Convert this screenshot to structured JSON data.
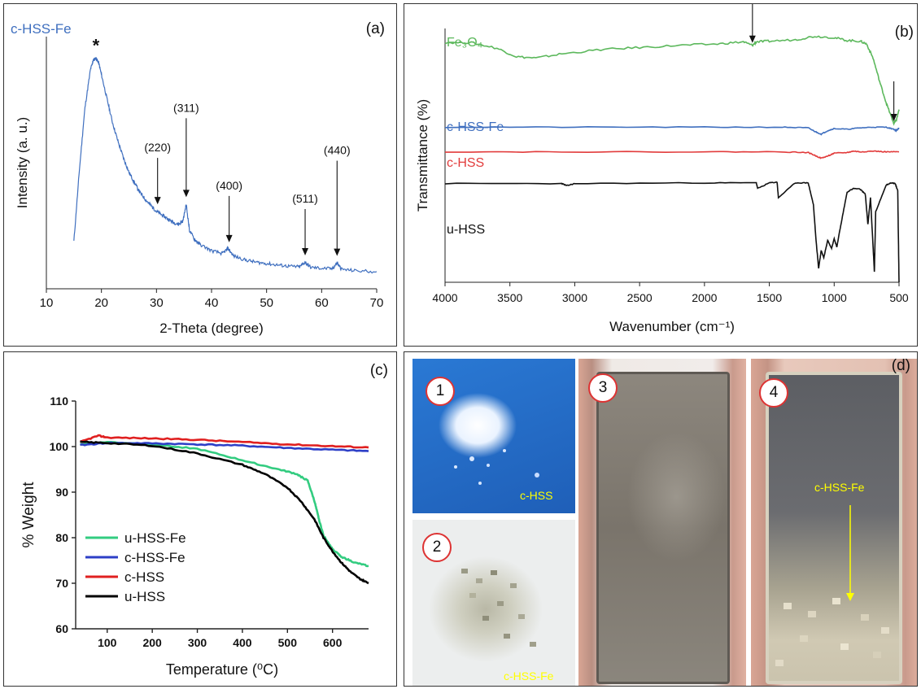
{
  "panels": [
    {
      "label": "(a)",
      "chart_data": {
        "type": "line",
        "title": "c-HSS-Fe",
        "xlabel": "2-Theta (degree)",
        "ylabel": "Intensity (a. u.)",
        "xlim": [
          10,
          70
        ],
        "xticks": [
          10,
          20,
          30,
          40,
          50,
          60,
          70
        ],
        "series": [
          {
            "name": "c-HSS-Fe",
            "color": "#3f6fbf",
            "x": [
              15,
              16,
              17,
              18,
              18.5,
              19,
              19.5,
              20,
              21,
              22,
              23,
              24,
              25,
              26,
              27,
              28,
              29,
              30,
              31,
              32,
              33,
              34,
              34.8,
              35.4,
              36,
              37,
              38,
              40,
              42,
              43,
              44,
              46,
              48,
              50,
              52,
              54,
              56,
              57,
              58,
              60,
              62,
              62.8,
              63.6,
              66,
              70
            ],
            "y": [
              2.0,
              5.0,
              7.6,
              9.2,
              9.6,
              9.7,
              9.5,
              9.0,
              8.0,
              7.0,
              6.2,
              5.5,
              4.9,
              4.45,
              4.05,
              3.75,
              3.5,
              3.25,
              3.1,
              2.95,
              2.8,
              2.7,
              2.85,
              3.55,
              2.45,
              2.05,
              1.85,
              1.6,
              1.48,
              1.7,
              1.38,
              1.22,
              1.12,
              1.06,
              1.0,
              0.95,
              0.92,
              1.12,
              0.9,
              0.86,
              0.84,
              1.1,
              0.82,
              0.76,
              0.72
            ]
          }
        ],
        "annotations": [
          {
            "text": "*",
            "x": 19,
            "y": 9.7,
            "arrow": false
          },
          {
            "text": "(220)",
            "x": 30.2,
            "y": 3.45,
            "arrow": true
          },
          {
            "text": "(311)",
            "x": 35.4,
            "y": 3.75,
            "arrow": true
          },
          {
            "text": "(400)",
            "x": 43.2,
            "y": 1.85,
            "arrow": true
          },
          {
            "text": "(511)",
            "x": 57.0,
            "y": 1.3,
            "arrow": true
          },
          {
            "text": "(440)",
            "x": 62.8,
            "y": 1.28,
            "arrow": true
          }
        ]
      }
    },
    {
      "label": "(b)",
      "chart_data": {
        "type": "line",
        "xlabel": "Wavenumber (cm⁻¹)",
        "ylabel": "Transmittance (%)",
        "xlim": [
          4000,
          500
        ],
        "xticks": [
          4000,
          3500,
          3000,
          2500,
          2000,
          1500,
          1000,
          500
        ],
        "series": [
          {
            "name": "Fe₃O₄",
            "color": "#5cb85c",
            "x": [
              4000,
              3800,
              3600,
              3450,
              3300,
              3100,
              2800,
              2500,
              2200,
              1900,
              1700,
              1630,
              1600,
              1500,
              1300,
              1150,
              1000,
              900,
              800,
              750,
              700,
              650,
              600,
              560,
              540,
              520,
              500
            ],
            "y": [
              3.4,
              3.4,
              3.32,
              3.2,
              3.18,
              3.24,
              3.3,
              3.33,
              3.36,
              3.38,
              3.41,
              3.36,
              3.41,
              3.42,
              3.44,
              3.49,
              3.47,
              3.43,
              3.42,
              3.38,
              3.18,
              2.85,
              2.55,
              2.35,
              2.25,
              2.3,
              2.45
            ]
          },
          {
            "name": "c-HSS-Fe",
            "color": "#3f6fbf",
            "x": [
              4000,
              3000,
              2000,
              1400,
              1200,
              1150,
              1100,
              1050,
              1000,
              900,
              800,
              700,
              600,
              540,
              520,
              500
            ],
            "y": [
              2.2,
              2.2,
              2.2,
              2.2,
              2.19,
              2.14,
              2.1,
              2.15,
              2.18,
              2.17,
              2.19,
              2.2,
              2.2,
              2.17,
              2.15,
              2.19
            ]
          },
          {
            "name": "c-HSS",
            "color": "#e23c3c",
            "x": [
              4000,
              3000,
              2000,
              1400,
              1200,
              1150,
              1100,
              1050,
              1000,
              900,
              850,
              800,
              700,
              600,
              500
            ],
            "y": [
              1.85,
              1.85,
              1.85,
              1.85,
              1.84,
              1.8,
              1.76,
              1.79,
              1.83,
              1.84,
              1.86,
              1.85,
              1.86,
              1.85,
              1.85
            ]
          },
          {
            "name": "u-HSS",
            "color": "#111111",
            "x": [
              4000,
              3100,
              3060,
              3000,
              2000,
              1600,
              1590,
              1500,
              1440,
              1430,
              1300,
              1200,
              1160,
              1140,
              1120,
              1100,
              1080,
              1050,
              1020,
              1000,
              980,
              950,
              900,
              850,
              800,
              760,
              740,
              720,
              700,
              690,
              680,
              600,
              560,
              530,
              510,
              500
            ],
            "y": [
              1.4,
              1.4,
              1.37,
              1.4,
              1.41,
              1.41,
              1.33,
              1.41,
              1.42,
              1.2,
              1.41,
              1.41,
              1.1,
              0.6,
              0.2,
              0.45,
              0.35,
              0.6,
              0.48,
              0.62,
              0.5,
              0.8,
              1.28,
              1.33,
              1.32,
              1.25,
              0.82,
              1.2,
              0.5,
              0.15,
              1.0,
              1.38,
              1.41,
              1.4,
              1.3,
              0.0
            ]
          }
        ],
        "annotations": [
          {
            "text": "",
            "x": 1630,
            "y": 3.36,
            "arrow": true
          },
          {
            "text": "",
            "x": 540,
            "y": 2.25,
            "arrow": true
          }
        ]
      }
    },
    {
      "label": "(c)",
      "chart_data": {
        "type": "line",
        "xlabel": "Temperature (⁰C)",
        "ylabel": "% Weight",
        "xlim": [
          30,
          680
        ],
        "ylim": [
          60,
          110
        ],
        "xticks": [
          100,
          200,
          300,
          400,
          500,
          600
        ],
        "yticks": [
          60,
          70,
          80,
          90,
          100,
          110
        ],
        "legend": "lower-left",
        "series": [
          {
            "name": "u-HSS-Fe",
            "color": "#33cc80",
            "x": [
              40,
              100,
              200,
              300,
              400,
              480,
              520,
              545,
              560,
              570,
              580,
              600,
              620,
              650,
              680
            ],
            "y": [
              100.5,
              101.0,
              100.5,
              99.5,
              97.0,
              95.0,
              94.0,
              92.5,
              88.0,
              84.0,
              80.5,
              77.5,
              75.8,
              74.5,
              73.8
            ]
          },
          {
            "name": "c-HSS-Fe",
            "color": "#2d3fc7",
            "x": [
              40,
              100,
              200,
              300,
              400,
              500,
              600,
              680
            ],
            "y": [
              100.3,
              100.8,
              100.7,
              100.5,
              100.2,
              99.7,
              99.3,
              99.0
            ]
          },
          {
            "name": "c-HSS",
            "color": "#e02020",
            "x": [
              40,
              80,
              100,
              200,
              300,
              400,
              500,
              600,
              680
            ],
            "y": [
              101.0,
              102.4,
              102.0,
              101.8,
              101.5,
              101.0,
              100.5,
              100.1,
              99.8
            ]
          },
          {
            "name": "u-HSS",
            "color": "#000000",
            "x": [
              40,
              100,
              200,
              300,
              400,
              450,
              500,
              530,
              560,
              580,
              600,
              620,
              640,
              660,
              680
            ],
            "y": [
              101.0,
              100.8,
              100.2,
              98.5,
              96.0,
              94.0,
              91.0,
              88.0,
              84.0,
              80.0,
              77.0,
              74.5,
              72.5,
              71.0,
              70.0
            ]
          }
        ]
      }
    },
    {
      "label": "(d)",
      "photos": [
        {
          "number": "1",
          "caption": "c-HSS"
        },
        {
          "number": "2",
          "caption": "c-HSS-Fe"
        },
        {
          "number": "3",
          "caption": ""
        },
        {
          "number": "4",
          "caption": "c-HSS-Fe"
        }
      ]
    }
  ],
  "colors": {
    "frame": "#333333",
    "photo_caption": "#ffff00",
    "badge_border": "#dd3333"
  }
}
